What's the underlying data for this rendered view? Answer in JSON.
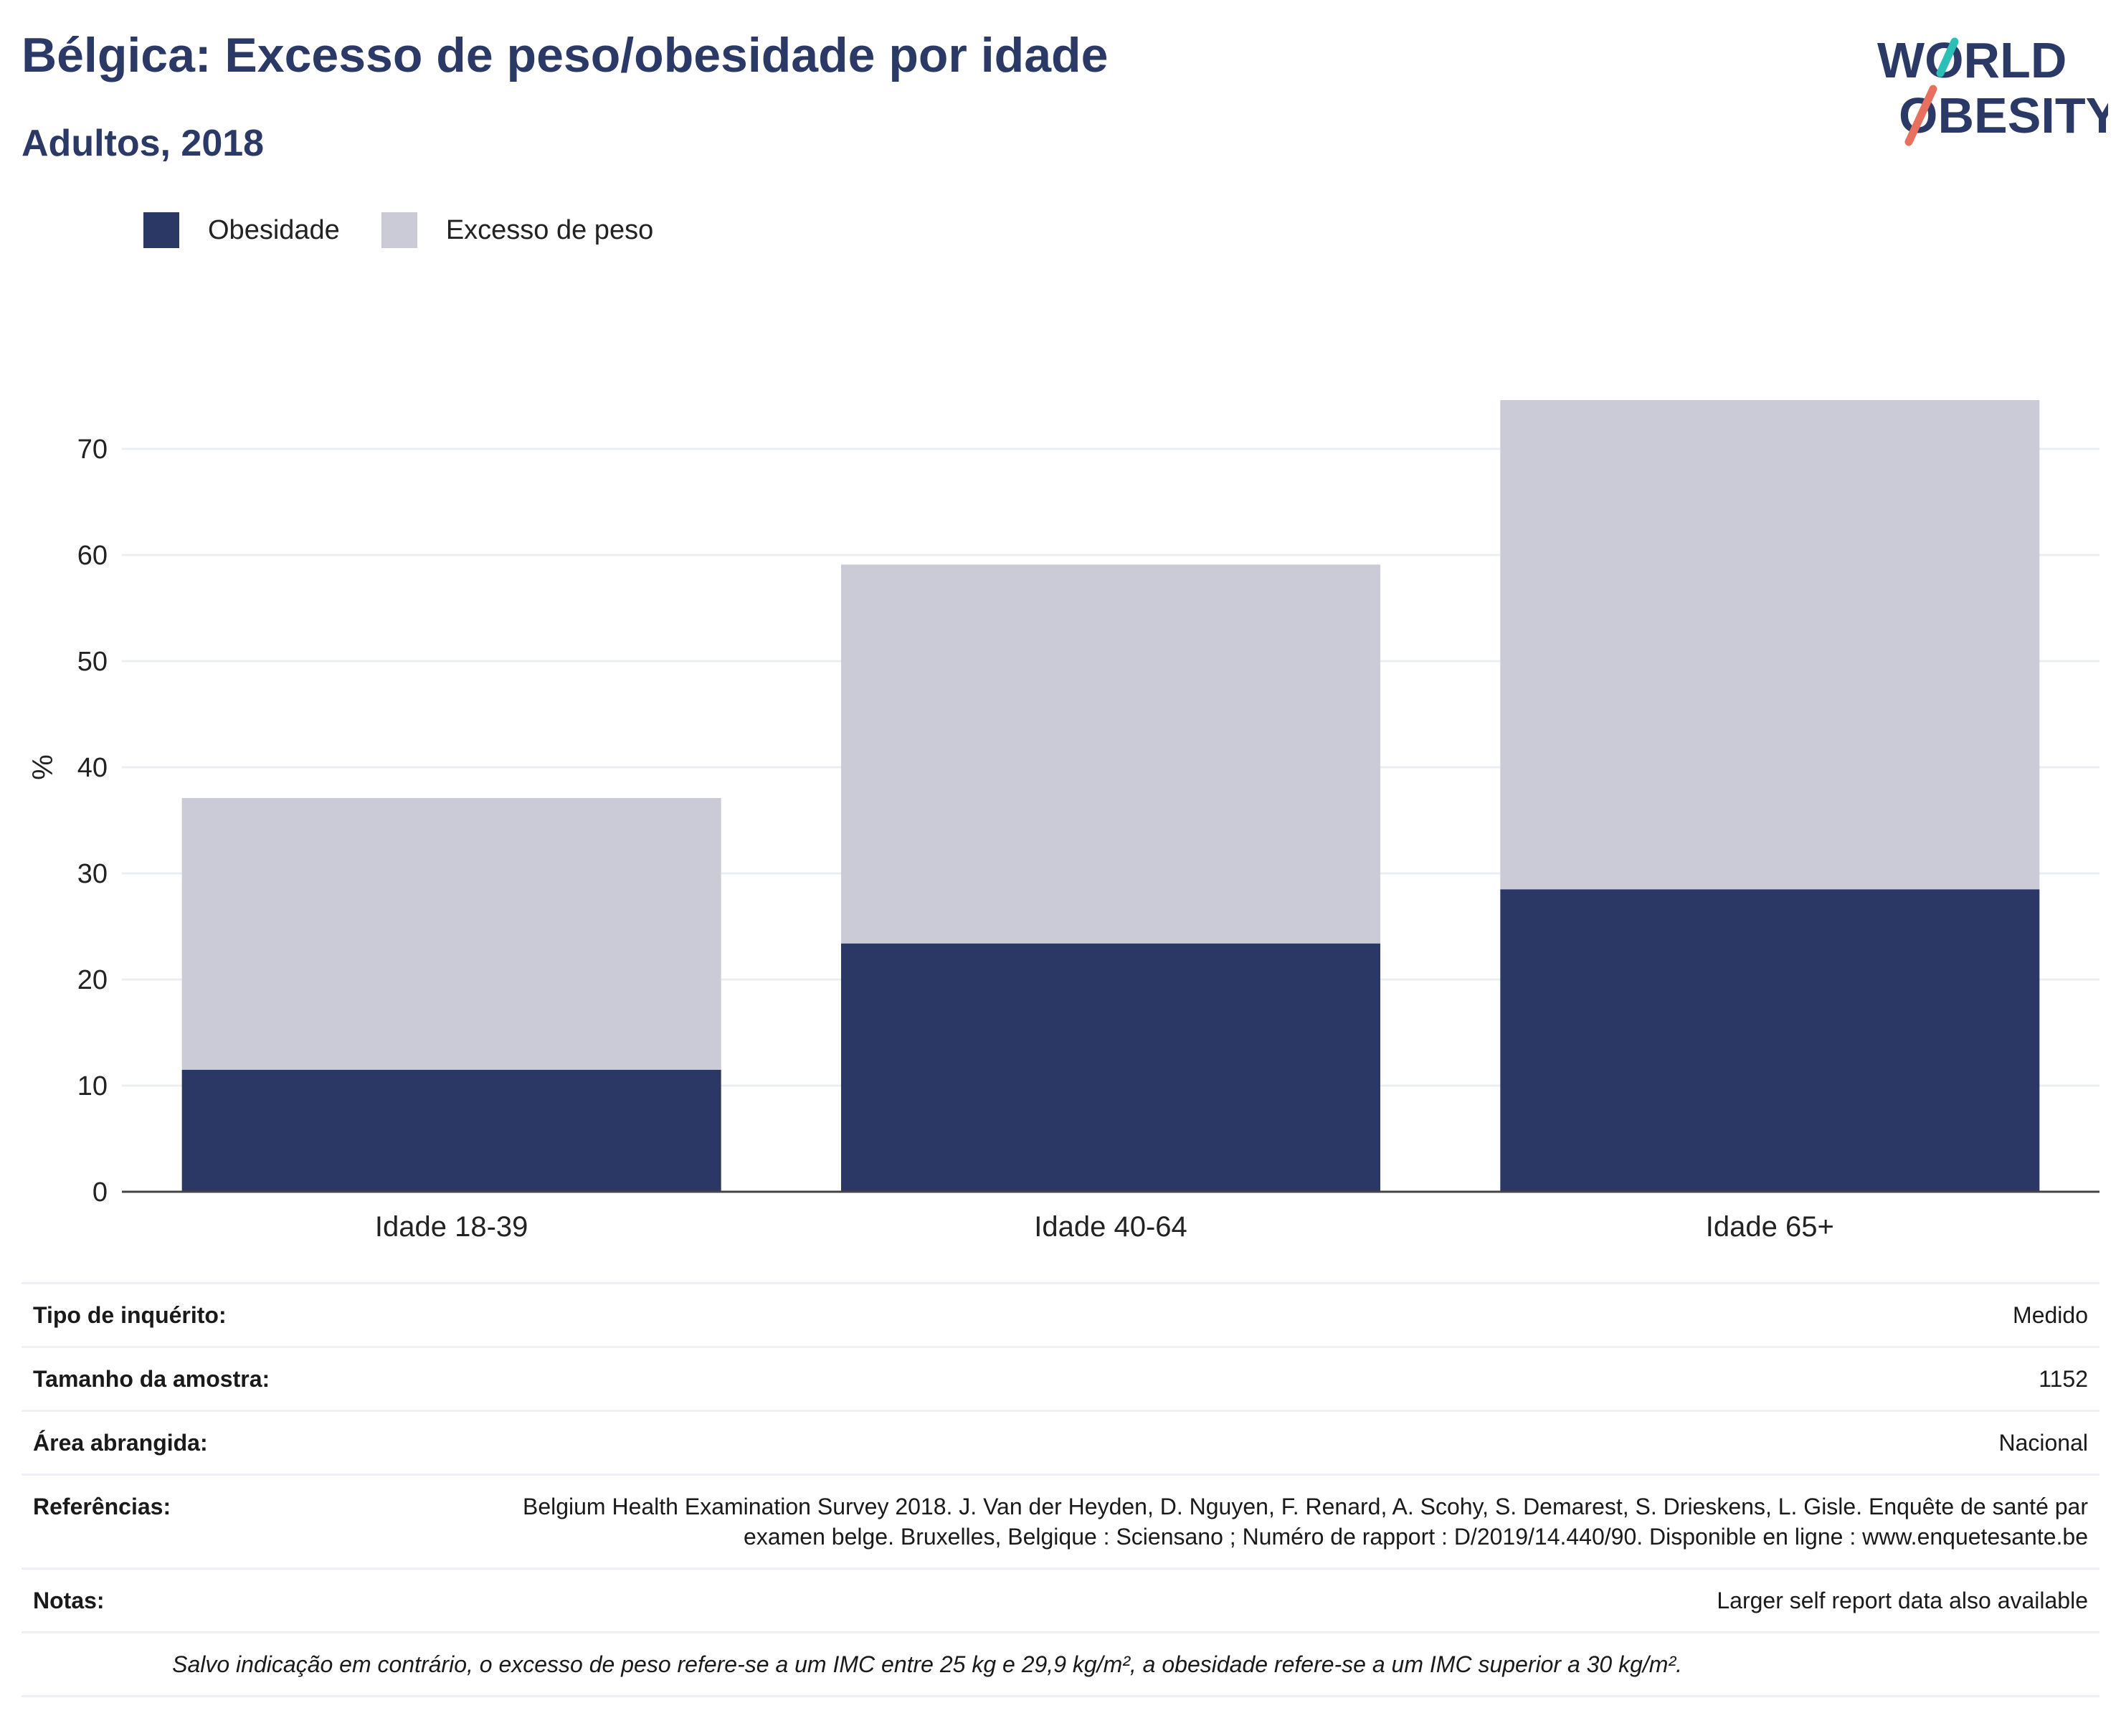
{
  "header": {
    "title": "Bélgica: Excesso de peso/obesidade por idade",
    "subtitle": "Adultos, 2018",
    "logo_line1": "WORLD",
    "logo_line2": "OBESITY"
  },
  "colors": {
    "obesity": "#2b3765",
    "overweight": "#cacbd7",
    "title": "#2b3966",
    "logo_teal": "#2bbfb8",
    "logo_coral": "#e8705e"
  },
  "chart_data": {
    "type": "bar",
    "stacked": true,
    "categories": [
      "Idade 18-39",
      "Idade 40-64",
      "Idade 65+"
    ],
    "series": [
      {
        "name": "Obesidade",
        "values": [
          11.5,
          23.4,
          28.5
        ]
      },
      {
        "name": "Excesso de peso",
        "values": [
          25.6,
          35.7,
          46.1
        ]
      }
    ],
    "title": "Bélgica: Excesso de peso/obesidade por idade",
    "subtitle": "Adultos, 2018",
    "xlabel": "",
    "ylabel": "%",
    "ylim": [
      0,
      80
    ],
    "yticks": [
      0,
      10,
      20,
      30,
      40,
      50,
      60,
      70
    ],
    "grid": true,
    "legend_position": "top-left"
  },
  "info": {
    "rows": [
      {
        "key": "Tipo de inquérito:",
        "value": "Medido"
      },
      {
        "key": "Tamanho da amostra:",
        "value": "1152"
      },
      {
        "key": "Área abrangida:",
        "value": "Nacional"
      },
      {
        "key": "Referências:",
        "value": "Belgium Health Examination Survey 2018. J. Van der Heyden, D. Nguyen, F. Renard, A. Scohy, S. Demarest, S. Drieskens, L. Gisle. Enquête de santé par examen belge. Bruxelles, Belgique : Sciensano ; Numéro de rapport : D/2019/14.440/90. Disponible en ligne : www.enquetesante.be"
      },
      {
        "key": "Notas:",
        "value": "Larger self report data also available"
      }
    ],
    "footnote": "Salvo indicação em contrário, o excesso de peso refere-se a um IMC entre 25 kg e 29,9 kg/m², a obesidade refere-se a um IMC superior a 30 kg/m²."
  }
}
